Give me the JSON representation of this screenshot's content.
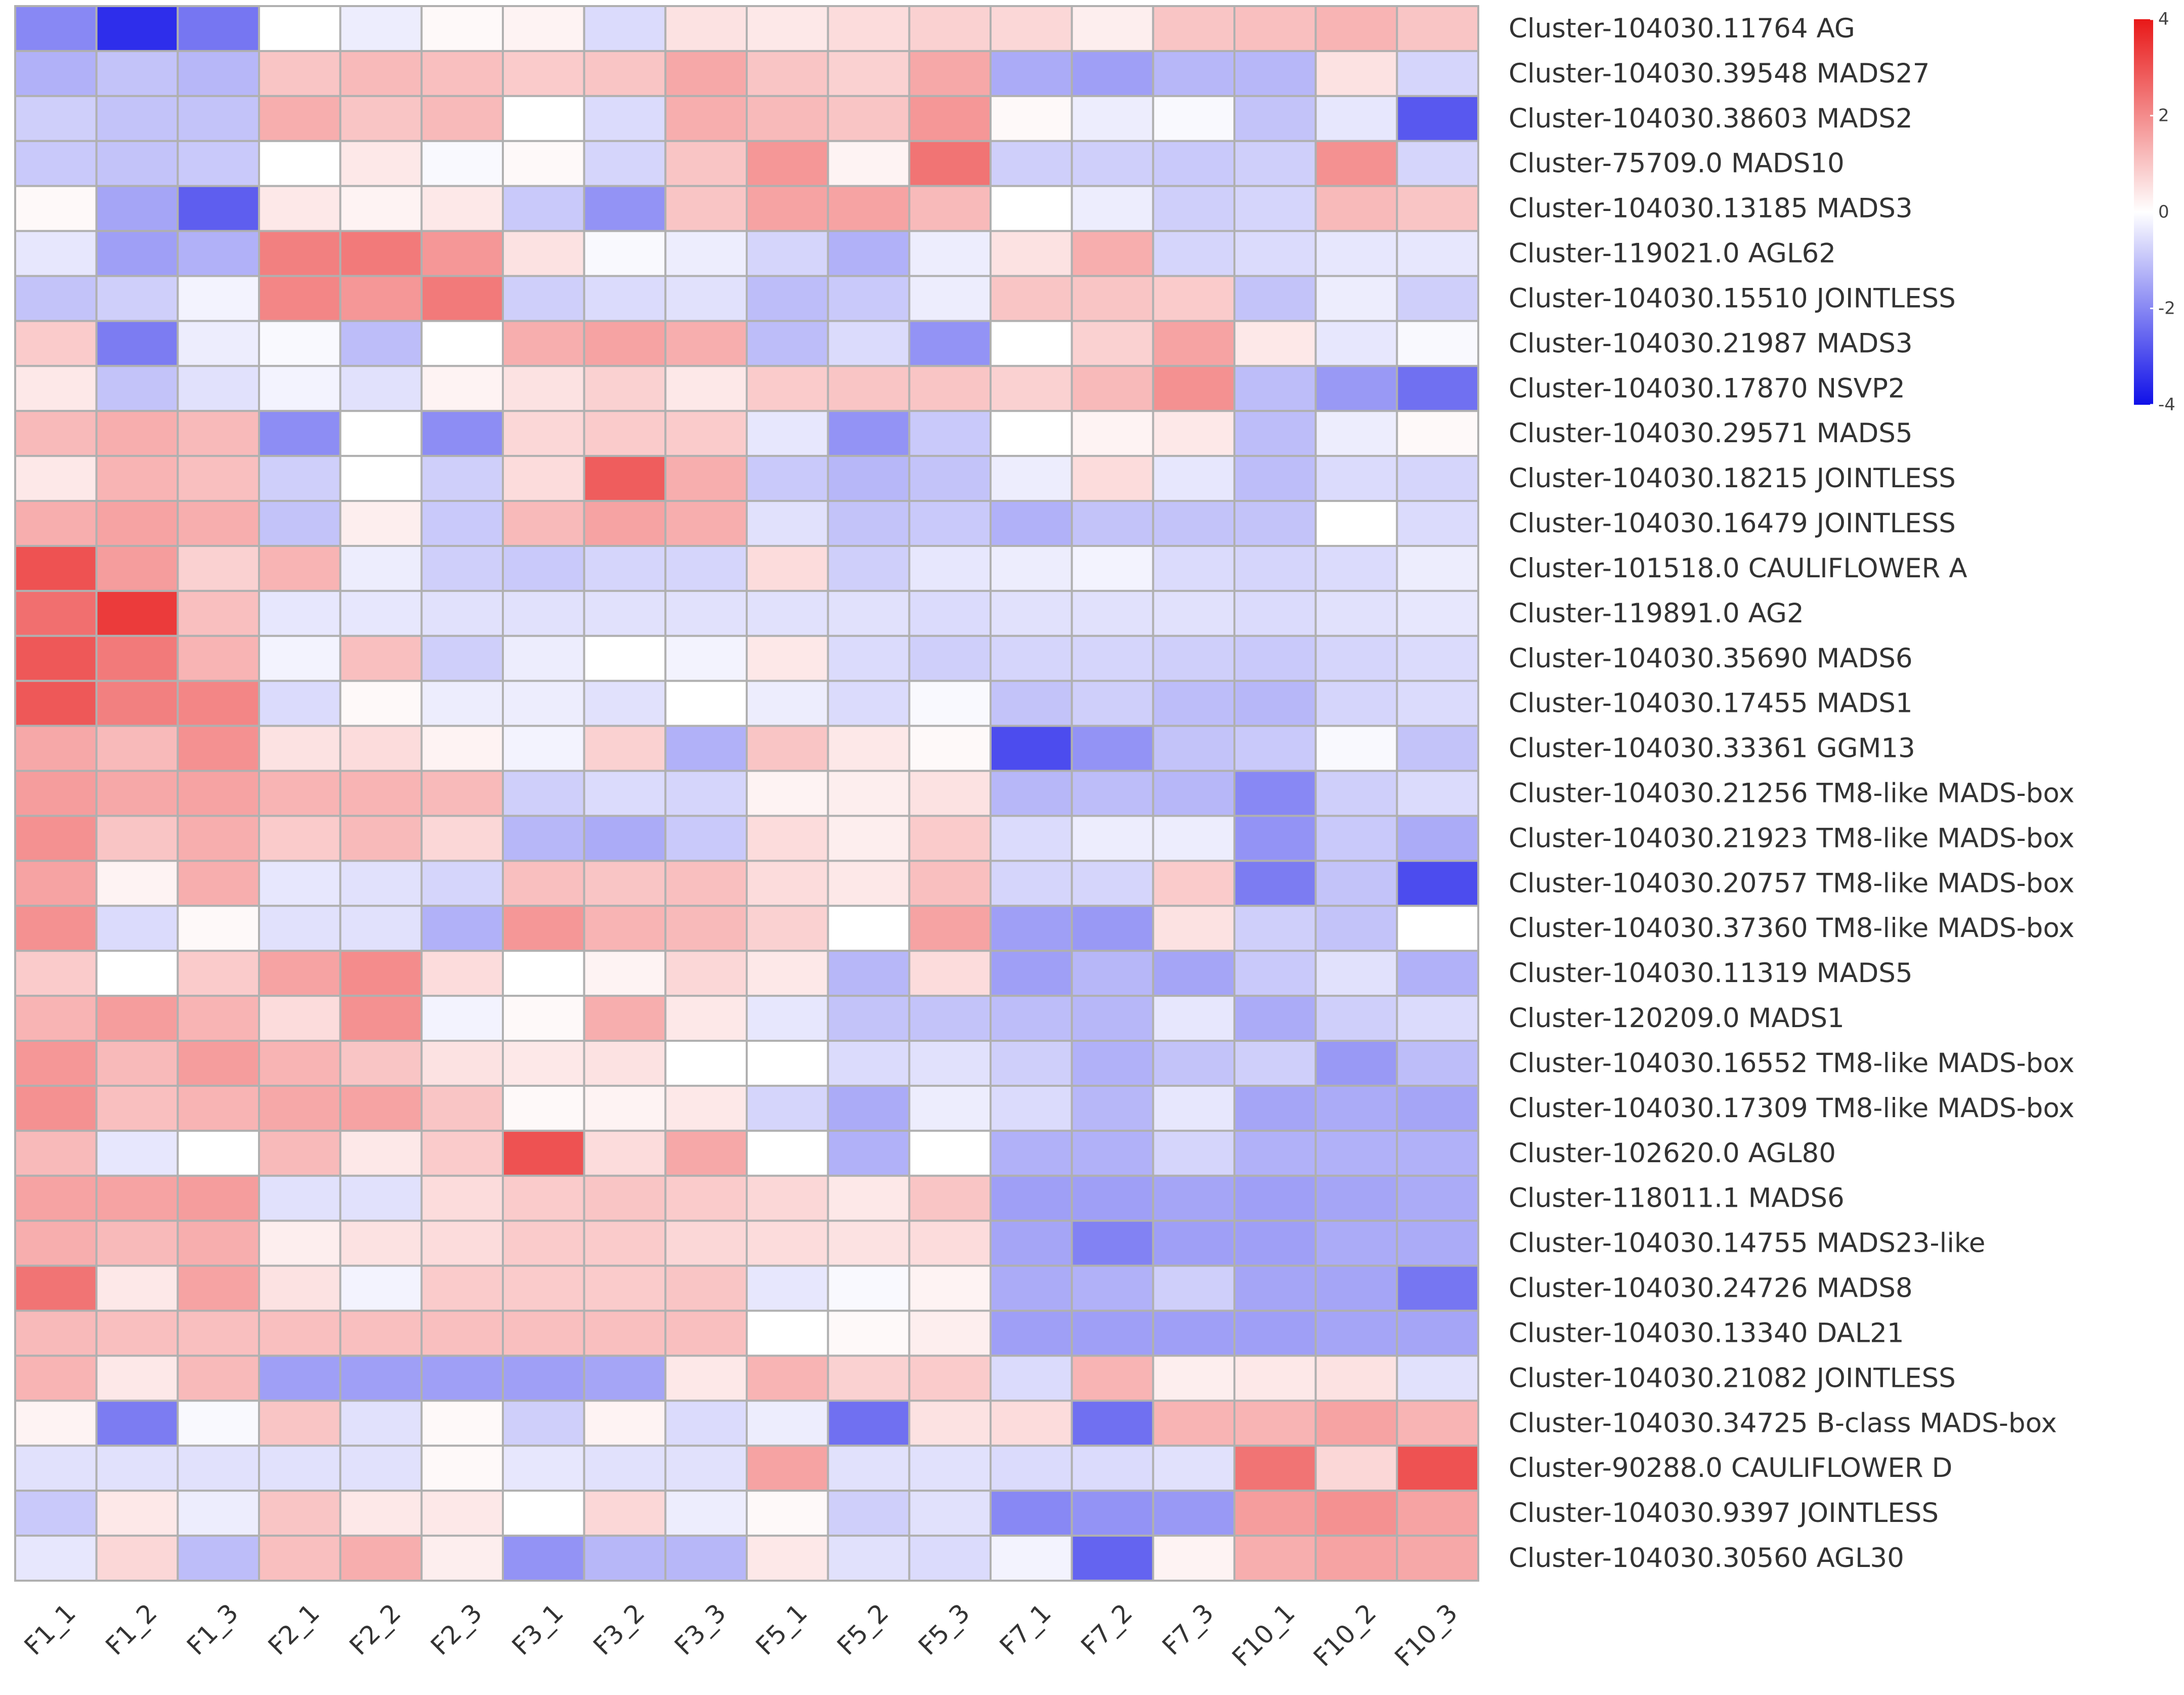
{
  "chart_data": {
    "type": "heatmap",
    "title": "",
    "columns": [
      "F1_1",
      "F1_2",
      "F1_3",
      "F2_1",
      "F2_2",
      "F2_3",
      "F3_1",
      "F3_2",
      "F3_3",
      "F5_1",
      "F5_2",
      "F5_3",
      "F7_1",
      "F7_2",
      "F7_3",
      "F10_1",
      "F10_2",
      "F10_3"
    ],
    "rows": [
      "Cluster-104030.11764 AG",
      "Cluster-104030.39548 MADS27",
      "Cluster-104030.38603 MADS2",
      "Cluster-75709.0 MADS10",
      "Cluster-104030.13185 MADS3",
      "Cluster-119021.0 AGL62",
      "Cluster-104030.15510 JOINTLESS",
      "Cluster-104030.21987 MADS3",
      "Cluster-104030.17870 NSVP2",
      "Cluster-104030.29571 MADS5",
      "Cluster-104030.18215 JOINTLESS",
      "Cluster-104030.16479 JOINTLESS",
      "Cluster-101518.0 CAULIFLOWER A",
      "Cluster-119891.0 AG2",
      "Cluster-104030.35690 MADS6",
      "Cluster-104030.17455 MADS1",
      "Cluster-104030.33361 GGM13",
      "Cluster-104030.21256 TM8-like MADS-box",
      "Cluster-104030.21923 TM8-like MADS-box",
      "Cluster-104030.20757 TM8-like MADS-box",
      "Cluster-104030.37360 TM8-like MADS-box",
      "Cluster-104030.11319 MADS5",
      "Cluster-120209.0 MADS1",
      "Cluster-104030.16552 TM8-like MADS-box",
      "Cluster-104030.17309 TM8-like MADS-box",
      "Cluster-102620.0 AGL80",
      "Cluster-118011.1 MADS6",
      "Cluster-104030.14755 MADS23-like",
      "Cluster-104030.24726 MADS8",
      "Cluster-104030.13340 DAL21",
      "Cluster-104030.21082 JOINTLESS",
      "Cluster-104030.34725 B-class MADS-box",
      "Cluster-90288.0 CAULIFLOWER D",
      "Cluster-104030.9397 JOINTLESS",
      "Cluster-104030.30560 AGL30"
    ],
    "values": [
      [
        -2.0,
        -3.5,
        -2.3,
        0.0,
        -0.3,
        0.1,
        0.2,
        -0.6,
        0.5,
        0.4,
        0.6,
        0.8,
        0.7,
        0.3,
        1.0,
        1.1,
        1.3,
        1.0
      ],
      [
        -1.3,
        -1.0,
        -1.2,
        1.0,
        1.2,
        1.1,
        0.9,
        1.0,
        1.5,
        1.0,
        0.8,
        1.5,
        -1.4,
        -1.6,
        -1.2,
        -1.2,
        0.5,
        -0.7
      ],
      [
        -0.8,
        -1.0,
        -1.0,
        1.4,
        1.0,
        1.2,
        0.0,
        -0.6,
        1.4,
        1.2,
        1.0,
        1.8,
        0.1,
        -0.3,
        -0.1,
        -1.0,
        -0.4,
        -2.8
      ],
      [
        -0.9,
        -1.0,
        -0.9,
        0.0,
        0.4,
        -0.1,
        0.1,
        -0.7,
        1.0,
        1.8,
        0.2,
        2.4,
        -0.8,
        -0.8,
        -0.9,
        -0.8,
        1.9,
        -0.7
      ],
      [
        0.1,
        -1.5,
        -2.7,
        0.4,
        0.2,
        0.4,
        -0.9,
        -1.8,
        1.0,
        1.6,
        1.6,
        1.2,
        0.0,
        -0.3,
        -0.8,
        -0.7,
        1.2,
        1.0
      ],
      [
        -0.4,
        -1.6,
        -1.3,
        2.2,
        2.3,
        1.8,
        0.5,
        -0.1,
        -0.3,
        -0.7,
        -1.3,
        -0.3,
        0.5,
        1.4,
        -0.7,
        -0.6,
        -0.4,
        -0.4
      ],
      [
        -1.0,
        -0.8,
        -0.2,
        2.1,
        1.8,
        2.3,
        -0.8,
        -0.6,
        -0.5,
        -1.1,
        -0.9,
        -0.3,
        1.0,
        1.0,
        0.9,
        -1.0,
        -0.3,
        -0.8
      ],
      [
        0.9,
        -2.2,
        -0.3,
        -0.1,
        -1.1,
        0.0,
        1.4,
        1.6,
        1.4,
        -1.1,
        -0.6,
        -1.8,
        0.0,
        0.8,
        1.6,
        0.4,
        -0.4,
        -0.1
      ],
      [
        0.4,
        -1.0,
        -0.5,
        -0.2,
        -0.5,
        0.2,
        0.5,
        0.8,
        0.4,
        0.9,
        1.0,
        1.0,
        0.8,
        1.2,
        1.9,
        -1.1,
        -1.7,
        -2.4
      ],
      [
        1.2,
        1.4,
        1.2,
        -1.9,
        0.0,
        -1.9,
        0.7,
        0.9,
        0.9,
        -0.4,
        -1.8,
        -0.9,
        0.0,
        0.2,
        0.4,
        -1.1,
        -0.3,
        0.1
      ],
      [
        0.4,
        1.3,
        1.1,
        -0.8,
        0.0,
        -0.8,
        0.6,
        2.8,
        1.4,
        -0.9,
        -1.2,
        -1.0,
        -0.3,
        0.6,
        -0.4,
        -1.1,
        -0.6,
        -0.7
      ],
      [
        1.4,
        1.6,
        1.4,
        -1.0,
        0.3,
        -0.9,
        1.2,
        1.6,
        1.4,
        -0.5,
        -1.0,
        -0.9,
        -1.3,
        -1.0,
        -1.0,
        -1.0,
        0.0,
        -0.6
      ],
      [
        3.0,
        1.7,
        0.8,
        1.3,
        -0.3,
        -0.8,
        -0.9,
        -0.7,
        -0.7,
        0.6,
        -0.8,
        -0.4,
        -0.3,
        -0.2,
        -0.6,
        -0.7,
        -0.6,
        -0.3
      ],
      [
        2.5,
        3.4,
        1.1,
        -0.4,
        -0.4,
        -0.5,
        -0.5,
        -0.5,
        -0.5,
        -0.5,
        -0.5,
        -0.6,
        -0.5,
        -0.5,
        -0.5,
        -0.6,
        -0.5,
        -0.4
      ],
      [
        2.9,
        2.3,
        1.3,
        -0.2,
        1.1,
        -0.8,
        -0.3,
        0.0,
        -0.2,
        0.4,
        -0.6,
        -0.8,
        -0.7,
        -0.7,
        -0.8,
        -0.9,
        -0.7,
        -0.6
      ],
      [
        2.9,
        2.2,
        2.1,
        -0.6,
        0.1,
        -0.3,
        -0.3,
        -0.5,
        0.0,
        -0.3,
        -0.6,
        -0.1,
        -1.0,
        -0.8,
        -1.1,
        -1.2,
        -0.7,
        -0.6
      ],
      [
        1.5,
        1.2,
        1.9,
        0.5,
        0.6,
        0.2,
        -0.2,
        0.8,
        -1.3,
        1.0,
        0.4,
        0.1,
        -3.0,
        -1.8,
        -1.0,
        -0.9,
        -0.1,
        -1.0
      ],
      [
        1.7,
        1.5,
        1.6,
        1.3,
        1.3,
        1.2,
        -0.8,
        -0.6,
        -0.7,
        0.2,
        0.3,
        0.5,
        -1.2,
        -1.1,
        -1.2,
        -2.0,
        -0.8,
        -0.6
      ],
      [
        1.9,
        1.0,
        1.4,
        0.9,
        1.2,
        0.7,
        -1.2,
        -1.4,
        -0.9,
        0.6,
        0.3,
        0.9,
        -0.6,
        -0.3,
        -0.3,
        -1.8,
        -0.9,
        -1.4
      ],
      [
        1.6,
        0.2,
        1.4,
        -0.4,
        -0.5,
        -0.7,
        1.1,
        1.0,
        1.1,
        0.6,
        0.4,
        1.1,
        -0.7,
        -0.7,
        0.9,
        -2.2,
        -1.0,
        -3.0
      ],
      [
        1.9,
        -0.6,
        0.1,
        -0.5,
        -0.5,
        -1.3,
        1.8,
        1.3,
        1.2,
        0.8,
        0.0,
        1.6,
        -1.6,
        -1.7,
        0.5,
        -0.8,
        -1.0,
        0.0
      ],
      [
        0.9,
        0.0,
        0.9,
        1.6,
        2.0,
        0.6,
        0.0,
        0.2,
        0.7,
        0.4,
        -1.2,
        0.6,
        -1.6,
        -1.2,
        -1.5,
        -0.9,
        -0.5,
        -1.3
      ],
      [
        1.3,
        1.7,
        1.3,
        0.6,
        1.9,
        -0.2,
        0.1,
        1.4,
        0.4,
        -0.4,
        -1.0,
        -1.0,
        -1.1,
        -1.2,
        -0.4,
        -1.4,
        -0.8,
        -0.6
      ],
      [
        1.8,
        1.2,
        1.7,
        1.3,
        1.0,
        0.5,
        0.4,
        0.5,
        0.0,
        0.0,
        -0.6,
        -0.5,
        -0.8,
        -1.3,
        -1.0,
        -0.8,
        -1.7,
        -1.1
      ],
      [
        1.9,
        1.1,
        1.3,
        1.5,
        1.6,
        1.0,
        0.1,
        0.2,
        0.4,
        -0.7,
        -1.4,
        -0.3,
        -0.6,
        -1.2,
        -0.4,
        -1.5,
        -1.4,
        -1.5
      ],
      [
        1.2,
        -0.4,
        0.0,
        1.2,
        0.4,
        0.9,
        3.0,
        0.6,
        1.5,
        0.0,
        -1.3,
        0.0,
        -1.3,
        -1.3,
        -0.7,
        -1.3,
        -1.3,
        -1.3
      ],
      [
        1.6,
        1.6,
        1.7,
        -0.5,
        -0.5,
        0.6,
        0.9,
        1.0,
        0.9,
        0.7,
        0.4,
        1.0,
        -1.6,
        -1.6,
        -1.5,
        -1.6,
        -1.5,
        -1.4
      ],
      [
        1.4,
        1.2,
        1.4,
        0.3,
        0.5,
        0.6,
        0.9,
        0.9,
        0.7,
        0.6,
        0.5,
        0.6,
        -1.5,
        -2.1,
        -1.6,
        -1.6,
        -1.4,
        -1.4
      ],
      [
        2.4,
        0.4,
        1.6,
        0.5,
        -0.2,
        0.9,
        0.9,
        0.9,
        1.0,
        -0.4,
        -0.1,
        0.2,
        -1.4,
        -1.3,
        -0.8,
        -1.5,
        -1.5,
        -2.3
      ],
      [
        1.2,
        1.1,
        1.1,
        1.1,
        1.1,
        1.1,
        1.1,
        1.1,
        1.1,
        0.0,
        0.1,
        0.3,
        -1.6,
        -1.6,
        -1.6,
        -1.6,
        -1.5,
        -1.5
      ],
      [
        1.3,
        0.4,
        1.2,
        -1.6,
        -1.6,
        -1.6,
        -1.6,
        -1.5,
        0.4,
        1.3,
        0.8,
        0.9,
        -0.6,
        1.3,
        0.3,
        0.4,
        0.5,
        -0.5
      ],
      [
        0.2,
        -2.2,
        -0.1,
        1.0,
        -0.5,
        0.1,
        -0.8,
        0.2,
        -0.6,
        -0.3,
        -2.4,
        0.5,
        0.6,
        -2.4,
        1.3,
        1.3,
        1.6,
        1.3
      ],
      [
        -0.5,
        -0.5,
        -0.5,
        -0.5,
        -0.5,
        0.1,
        -0.4,
        -0.5,
        -0.5,
        1.6,
        -0.5,
        -0.5,
        -0.6,
        -0.6,
        -0.5,
        2.4,
        0.7,
        3.0
      ],
      [
        -0.9,
        0.4,
        -0.3,
        1.0,
        0.4,
        0.4,
        0.0,
        0.7,
        -0.3,
        0.1,
        -0.8,
        -0.5,
        -2.0,
        -1.8,
        -1.7,
        1.7,
        1.9,
        1.6
      ],
      [
        -0.4,
        0.7,
        -1.1,
        1.1,
        1.4,
        0.3,
        -1.8,
        -1.2,
        -1.2,
        0.4,
        -0.5,
        -0.6,
        -0.2,
        -2.6,
        0.2,
        1.4,
        1.6,
        1.5
      ]
    ],
    "color_scale": {
      "min": -4,
      "mid": 0,
      "max": 4,
      "low_color": "#1010e8",
      "mid_color": "#ffffff",
      "high_color": "#e81818",
      "ticks": [
        "4",
        "2",
        "0",
        "-2",
        "-4"
      ]
    },
    "grid_color": "#b0b0b0",
    "legend_position": "top-right"
  }
}
